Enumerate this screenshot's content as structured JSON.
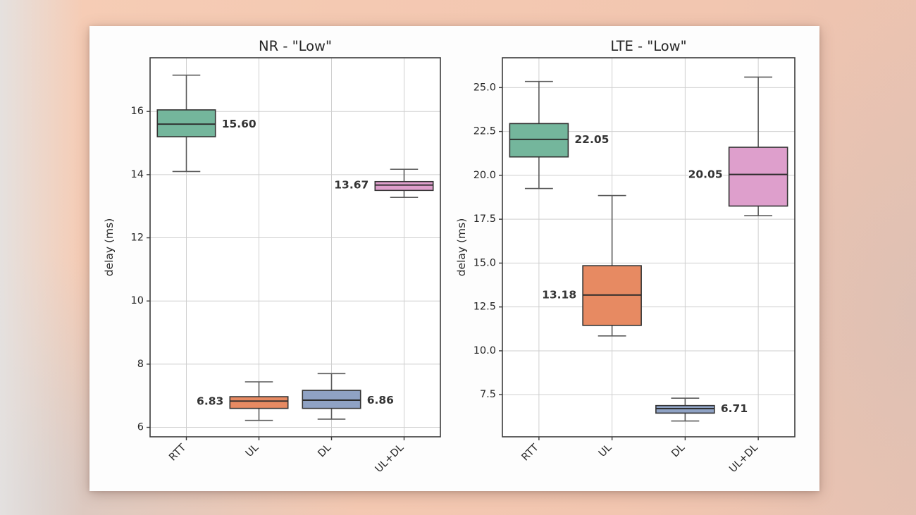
{
  "card": {
    "background": "#fdfdfd"
  },
  "colors": {
    "page_peach": "#f4c9b2",
    "plot_background": "#ffffff",
    "grid": "#cfcfcf",
    "frame": "#3b3b3b",
    "whisker": "#5a5a5a",
    "box_edge": "#333333",
    "median_line": "#2b2b2b",
    "tick_text": "#262626",
    "annotation_text": "#343434",
    "annotation_outline": "#ffffff"
  },
  "chart_data": [
    {
      "type": "box",
      "title": "NR - \"Low\"",
      "xlabel": "",
      "ylabel": "delay (ms)",
      "categories": [
        "RTT",
        "UL",
        "DL",
        "UL+DL"
      ],
      "ylim": [
        5.7,
        17.7
      ],
      "yticks": [
        6,
        8,
        10,
        12,
        14,
        16
      ],
      "ytick_labels": [
        "6",
        "8",
        "10",
        "12",
        "14",
        "16"
      ],
      "grid": true,
      "legend": "none",
      "boxes": [
        {
          "category": "RTT",
          "whislo": 14.1,
          "q1": 15.2,
          "med": 15.6,
          "q3": 16.05,
          "whishi": 17.15,
          "label": "15.60",
          "label_side": "right",
          "color": "#74b69c"
        },
        {
          "category": "UL",
          "whislo": 6.22,
          "q1": 6.6,
          "med": 6.83,
          "q3": 6.97,
          "whishi": 7.44,
          "label": "6.83",
          "label_side": "left",
          "color": "#e78a62"
        },
        {
          "category": "DL",
          "whislo": 6.26,
          "q1": 6.6,
          "med": 6.86,
          "q3": 7.17,
          "whishi": 7.7,
          "label": "6.86",
          "label_side": "right",
          "color": "#8fa2c4"
        },
        {
          "category": "UL+DL",
          "whislo": 13.28,
          "q1": 13.5,
          "med": 13.67,
          "q3": 13.78,
          "whishi": 14.17,
          "label": "13.67",
          "label_side": "left",
          "color": "#de9fcc"
        }
      ]
    },
    {
      "type": "box",
      "title": "LTE - \"Low\"",
      "xlabel": "",
      "ylabel": "delay (ms)",
      "categories": [
        "RTT",
        "UL",
        "DL",
        "UL+DL"
      ],
      "ylim": [
        5.1,
        26.7
      ],
      "yticks": [
        7.5,
        10.0,
        12.5,
        15.0,
        17.5,
        20.0,
        22.5,
        25.0
      ],
      "ytick_labels": [
        "7.5",
        "10.0",
        "12.5",
        "15.0",
        "17.5",
        "20.0",
        "22.5",
        "25.0"
      ],
      "grid": true,
      "legend": "none",
      "boxes": [
        {
          "category": "RTT",
          "whislo": 19.25,
          "q1": 21.05,
          "med": 22.05,
          "q3": 22.95,
          "whishi": 25.35,
          "label": "22.05",
          "label_side": "right",
          "color": "#74b69c"
        },
        {
          "category": "UL",
          "whislo": 10.85,
          "q1": 11.45,
          "med": 13.18,
          "q3": 14.85,
          "whishi": 18.85,
          "label": "13.18",
          "label_side": "left",
          "color": "#e78a62"
        },
        {
          "category": "DL",
          "whislo": 6.0,
          "q1": 6.45,
          "med": 6.71,
          "q3": 6.88,
          "whishi": 7.3,
          "label": "6.71",
          "label_side": "right",
          "color": "#8fa2c4"
        },
        {
          "category": "UL+DL",
          "whislo": 17.7,
          "q1": 18.25,
          "med": 20.05,
          "q3": 21.6,
          "whishi": 25.6,
          "label": "20.05",
          "label_side": "left",
          "color": "#de9fcc"
        }
      ]
    }
  ]
}
